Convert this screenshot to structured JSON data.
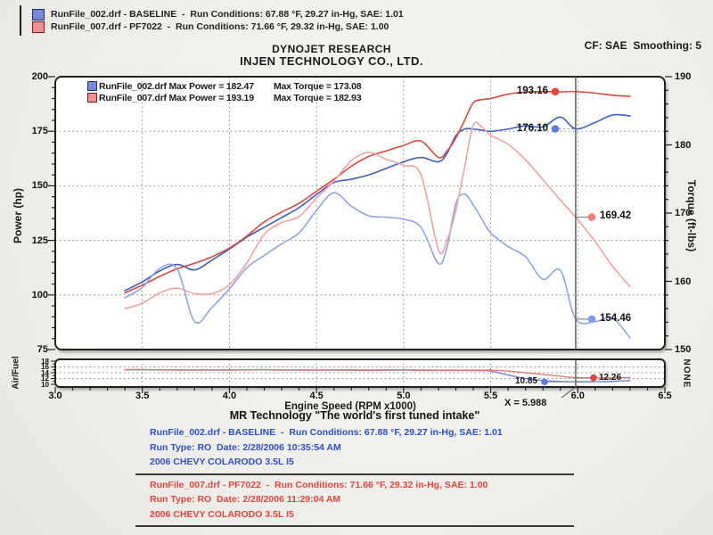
{
  "top_legend": {
    "items": [
      {
        "text": "RunFile_002.drf - BASELINE  -  Run Conditions: 67.88 °F, 29.27 in-Hg, SAE: 1.01",
        "swatch": "#7589d6",
        "border": "#1c2f6e"
      },
      {
        "text": "RunFile_007.drf - PF7022  -  Run Conditions: 71.66 °F, 29.32 in-Hg, SAE: 1.00",
        "swatch": "#f08d8d",
        "border": "#7c1f1c"
      }
    ]
  },
  "header": {
    "brand": "DYNOJET RESEARCH",
    "company": "INJEN TECHNOLOGY CO., LTD.",
    "settings": "CF: SAE  Smoothing: 5"
  },
  "cursor": {
    "x": 5.988,
    "label": "X = 5.988"
  },
  "chart_data": [
    {
      "type": "line",
      "title": "Dyno run comparison",
      "xlabel": "Engine Speed (RPM x1000)",
      "ylabel_left": "Power (hp)",
      "ylabel_right": "Torque (ft-lbs)",
      "xlim": [
        3.0,
        6.5
      ],
      "ylim_left": [
        75,
        200
      ],
      "ylim_right": [
        150,
        190
      ],
      "xticks": [
        "3.0",
        "3.5",
        "4.0",
        "4.5",
        "5.0",
        "5.5",
        "6.0",
        "6.5"
      ],
      "yticks_left": [
        200,
        175,
        150,
        125,
        100,
        75
      ],
      "yticks_right": [
        190,
        180,
        170,
        160,
        150
      ],
      "grid": "dotted",
      "legend_rows": [
        {
          "file": "RunFile_002.drf",
          "max_power_label": "Max Power = 182.47",
          "max_torque_label": "Max Torque = 173.08",
          "swatch": "#7589d6",
          "border": "#1c2f6e"
        },
        {
          "file": "RunFile_007.drf",
          "max_power_label": "Max Power = 193.19",
          "max_torque_label": "Max Torque = 182.93",
          "swatch": "#f08d8d",
          "border": "#7c1f1c"
        }
      ],
      "x": [
        3.4,
        3.5,
        3.6,
        3.7,
        3.8,
        3.9,
        4.0,
        4.1,
        4.2,
        4.3,
        4.4,
        4.5,
        4.6,
        4.7,
        4.8,
        4.9,
        5.0,
        5.1,
        5.2,
        5.25,
        5.3,
        5.35,
        5.4,
        5.45,
        5.5,
        5.6,
        5.7,
        5.8,
        5.9,
        5.988,
        6.1,
        6.2,
        6.3
      ],
      "series": [
        {
          "name": "RunFile_002.drf Power (hp)",
          "axis": "left",
          "color": "#3c5ec6",
          "values": [
            102,
            106,
            111,
            114,
            111.5,
            116,
            121,
            126.5,
            131,
            135.5,
            140,
            146,
            151.5,
            153,
            155,
            158,
            161,
            163,
            161,
            165,
            173,
            176,
            176,
            175.5,
            175,
            176,
            177.5,
            177,
            181.5,
            176.1,
            179,
            182.47,
            182
          ]
        },
        {
          "name": "RunFile_007.drf Power (hp)",
          "axis": "left",
          "color": "#e0463a",
          "values": [
            101,
            104.5,
            108.5,
            112,
            114.5,
            117.5,
            121.5,
            127,
            133.5,
            138,
            142,
            147.5,
            153,
            159,
            163.5,
            166,
            168.5,
            170.5,
            163,
            166,
            172,
            180,
            188,
            189.5,
            190,
            192,
            193,
            193.19,
            193.1,
            193.16,
            192.5,
            191.5,
            191
          ]
        },
        {
          "name": "RunFile_002.drf Torque (ft-lbs)",
          "axis": "right",
          "color": "#91a4e0",
          "values": [
            157.6,
            159.1,
            161.9,
            161.8,
            154.1,
            156.2,
            158.9,
            162.0,
            163.8,
            165.5,
            167.1,
            170.4,
            173.0,
            171.0,
            169.6,
            169.4,
            169.1,
            167.9,
            162.6,
            165.1,
            171.4,
            172.8,
            171.2,
            169.1,
            167.1,
            165.1,
            163.6,
            160.3,
            161.6,
            154.46,
            154.1,
            154.6,
            151.7
          ]
        },
        {
          "name": "RunFile_007.drf Torque (ft-lbs)",
          "axis": "right",
          "color": "#f2a2a0",
          "values": [
            156.0,
            156.8,
            158.3,
            159.0,
            158.2,
            158.2,
            159.5,
            162.7,
            166.9,
            168.6,
            169.5,
            172.2,
            174.7,
            177.7,
            178.9,
            177.9,
            177.0,
            175.6,
            164.6,
            166.1,
            170.4,
            176.7,
            182.9,
            182.6,
            181.4,
            180.1,
            177.8,
            174.9,
            171.9,
            169.42,
            165.8,
            162.2,
            159.2
          ]
        }
      ],
      "markers": [
        {
          "label": "193.16",
          "axis": "left",
          "value": 193.16,
          "at_x": 5.988,
          "side": "left",
          "color": "#ee4034"
        },
        {
          "label": "176.10",
          "axis": "left",
          "value": 176.1,
          "at_x": 5.988,
          "side": "left",
          "color": "#5b7be0"
        },
        {
          "label": "169.42",
          "axis": "right",
          "value": 169.42,
          "at_x": 5.988,
          "side": "right",
          "color": "#ef8080"
        },
        {
          "label": "154.46",
          "axis": "right",
          "value": 154.46,
          "at_x": 5.988,
          "side": "right",
          "color": "#7e97e8"
        }
      ]
    },
    {
      "type": "line",
      "title": "Air/Fuel ratio",
      "ylabel_left": "Air/Fuel",
      "ylabel_right": "NONE",
      "ylim": [
        10,
        18
      ],
      "yticks_left": [
        18,
        16,
        14,
        12,
        10
      ],
      "grid": "dotted",
      "x": [
        3.4,
        3.5,
        3.6,
        3.7,
        3.8,
        3.9,
        4.0,
        4.1,
        4.2,
        4.3,
        4.4,
        4.5,
        4.6,
        4.7,
        4.8,
        4.9,
        5.0,
        5.1,
        5.2,
        5.25,
        5.3,
        5.35,
        5.4,
        5.45,
        5.5,
        5.6,
        5.7,
        5.8,
        5.9,
        5.988,
        6.1,
        6.2,
        6.3
      ],
      "series": [
        {
          "name": "RunFile_002.drf Air/Fuel",
          "color": "#6b84d6",
          "values": [
            15.0,
            15.0,
            14.95,
            14.9,
            14.9,
            14.9,
            14.9,
            14.95,
            15.0,
            14.9,
            14.9,
            14.85,
            14.9,
            14.85,
            14.8,
            14.85,
            14.9,
            14.8,
            14.8,
            14.8,
            14.8,
            14.78,
            14.75,
            14.72,
            14.6,
            13.2,
            12.0,
            11.3,
            11.0,
            10.85,
            10.9,
            11.0,
            11.3
          ]
        },
        {
          "name": "RunFile_007.drf Air/Fuel",
          "color": "#e87a74",
          "values": [
            15.1,
            15.1,
            15.05,
            15.0,
            15.0,
            15.0,
            15.0,
            15.05,
            15.1,
            15.0,
            15.0,
            14.95,
            15.0,
            15.0,
            14.95,
            15.0,
            15.0,
            14.95,
            14.9,
            14.9,
            14.9,
            14.9,
            14.9,
            14.9,
            14.9,
            14.6,
            14.0,
            13.4,
            12.8,
            12.26,
            12.2,
            12.2,
            12.3
          ]
        }
      ],
      "markers": [
        {
          "label": "10.85",
          "value": 10.85,
          "at_x": 5.988,
          "side": "left",
          "color": "#5b7be0"
        },
        {
          "label": "12.26",
          "value": 12.26,
          "at_x": 5.988,
          "side": "right",
          "color": "#ee4034"
        }
      ]
    }
  ],
  "footer": {
    "title": "MR Technology \"The world's first tuned intake\"",
    "blocks": [
      {
        "color": "#2b50c8",
        "lines": [
          "RunFile_002.drf - BASELINE  -  Run Conditions: 67.88 °F, 29.27 in-Hg, SAE: 1.01",
          "Run Type: RO  Date: 2/28/2006 10:35:54 AM",
          "2006 CHEVY COLARODO 3.5L I5"
        ]
      },
      {
        "color": "#e0453a",
        "lines": [
          "RunFile_007.drf - PF7022  -  Run Conditions: 71.66 °F, 29.32 in-Hg, SAE: 1.00",
          "Run Type: RO  Date: 2/28/2006 11:29:04 AM",
          "2006 CHEVY COLARODO 3.5L I5"
        ]
      }
    ]
  }
}
